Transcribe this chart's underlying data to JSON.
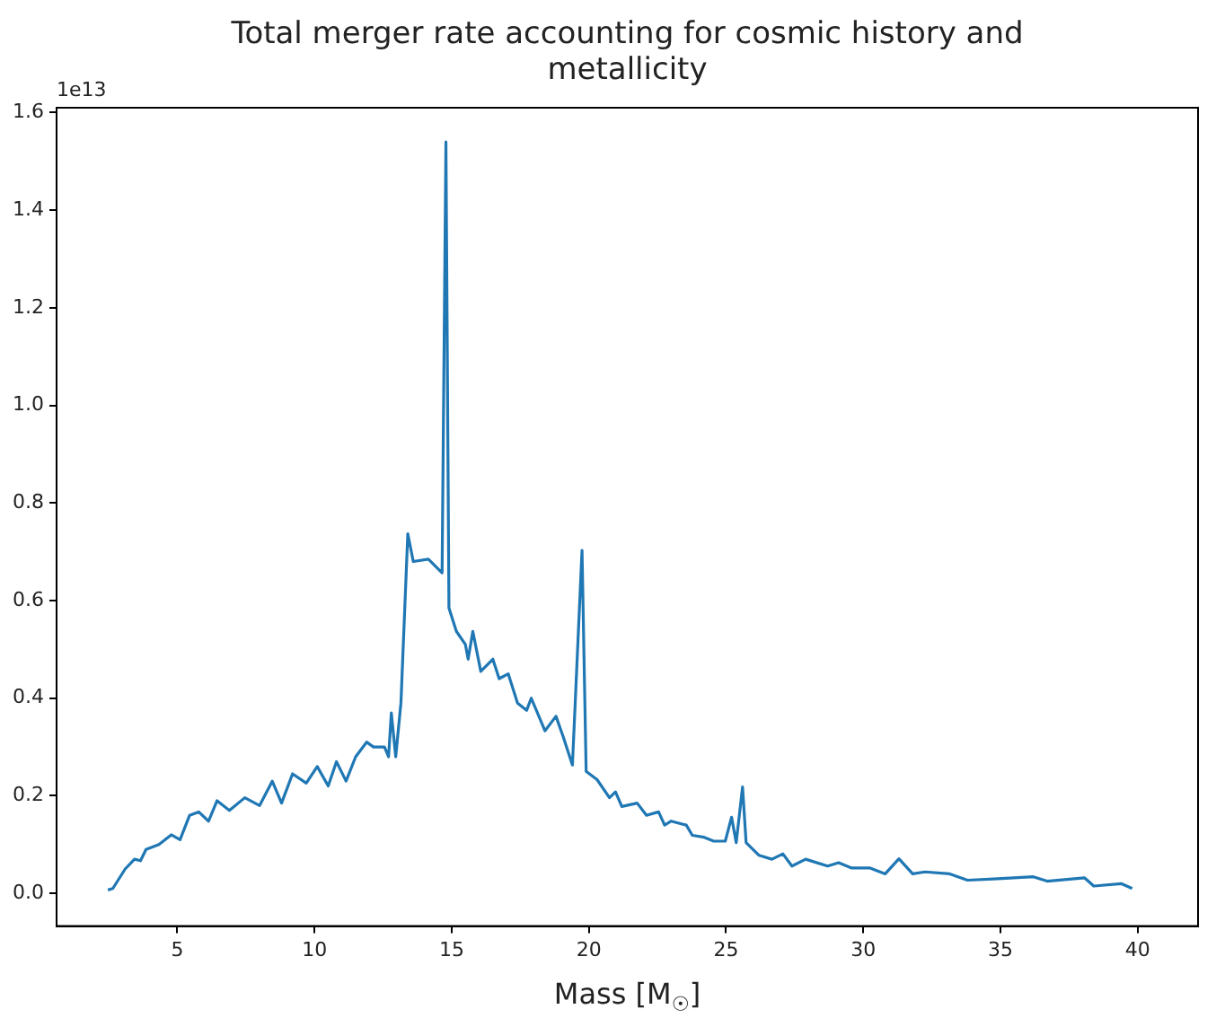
{
  "chart_data": {
    "type": "line",
    "title": "Total merger rate accounting for cosmic history and metallicity",
    "xlabel": "Mass [M$_{☉}$]",
    "annotations": [
      "1e13"
    ],
    "x": [
      2.47,
      2.65,
      3.1,
      3.44,
      3.66,
      3.86,
      4.33,
      4.78,
      5.1,
      5.45,
      5.78,
      6.14,
      6.45,
      6.9,
      7.46,
      8.0,
      8.46,
      8.8,
      9.2,
      9.7,
      10.1,
      10.5,
      10.8,
      11.15,
      11.5,
      11.9,
      12.15,
      12.55,
      12.7,
      12.8,
      12.96,
      13.15,
      13.4,
      13.6,
      14.15,
      14.65,
      14.79,
      14.9,
      15.17,
      15.5,
      15.6,
      15.77,
      16.06,
      16.5,
      16.73,
      17.06,
      17.4,
      17.73,
      17.9,
      18.4,
      18.8,
      19.07,
      19.4,
      19.75,
      19.9,
      20.3,
      20.75,
      20.97,
      21.2,
      21.76,
      22.1,
      22.54,
      22.76,
      23.0,
      23.55,
      23.77,
      24.2,
      24.55,
      24.97,
      25.2,
      25.37,
      25.6,
      25.73,
      26.2,
      26.67,
      27.07,
      27.4,
      27.9,
      28.7,
      29.1,
      29.58,
      30.25,
      30.8,
      31.3,
      31.8,
      32.25,
      33.15,
      33.8,
      34.9,
      36.2,
      36.7,
      38.06,
      38.4,
      39.4,
      39.8
    ],
    "series": [
      {
        "color": "#1f77b4",
        "values": [
          0.007,
          0.01,
          0.05,
          0.07,
          0.067,
          0.09,
          0.1,
          0.12,
          0.11,
          0.16,
          0.167,
          0.148,
          0.19,
          0.17,
          0.196,
          0.18,
          0.23,
          0.185,
          0.245,
          0.226,
          0.26,
          0.22,
          0.27,
          0.23,
          0.28,
          0.31,
          0.3,
          0.3,
          0.28,
          0.37,
          0.28,
          0.39,
          0.737,
          0.68,
          0.685,
          0.657,
          1.54,
          0.585,
          0.537,
          0.51,
          0.48,
          0.537,
          0.455,
          0.48,
          0.44,
          0.45,
          0.39,
          0.375,
          0.4,
          0.333,
          0.363,
          0.32,
          0.263,
          0.703,
          0.25,
          0.233,
          0.196,
          0.208,
          0.178,
          0.185,
          0.16,
          0.167,
          0.14,
          0.148,
          0.14,
          0.119,
          0.115,
          0.107,
          0.107,
          0.156,
          0.104,
          0.218,
          0.104,
          0.078,
          0.07,
          0.081,
          0.056,
          0.07,
          0.056,
          0.063,
          0.052,
          0.052,
          0.04,
          0.071,
          0.04,
          0.044,
          0.04,
          0.027,
          0.03,
          0.034,
          0.025,
          0.032,
          0.015,
          0.02,
          0.01
        ]
      }
    ],
    "xlim": [
      0.6,
      42.2
    ],
    "ylim": [
      -0.067,
      1.61
    ],
    "xticks": [
      5,
      10,
      15,
      20,
      25,
      30,
      35,
      40
    ],
    "yticks": [
      {
        "value": 0,
        "label": "0.0"
      },
      {
        "value": 0.2,
        "label": "0.2"
      },
      {
        "value": 0.4,
        "label": "0.4"
      },
      {
        "value": 0.6,
        "label": "0.6"
      },
      {
        "value": 0.8,
        "label": "0.8"
      },
      {
        "value": 1.0,
        "label": "1.0"
      },
      {
        "value": 1.2,
        "label": "1.2"
      },
      {
        "value": 1.4,
        "label": "1.4"
      },
      {
        "value": 1.6,
        "label": "1.6"
      }
    ],
    "grid": false,
    "legend": false,
    "marker": "none",
    "line_style": "solid"
  }
}
